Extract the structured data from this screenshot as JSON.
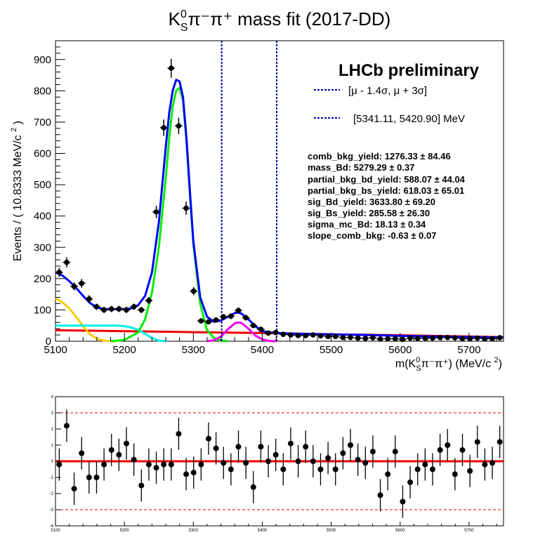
{
  "title": "K⁰Sπ⁻π⁺ mass fit (2017-DD)",
  "title_parts": {
    "k": "K",
    "sup": "0",
    "sub": "S",
    "rest": "π⁻π⁺ mass fit (2017-DD)"
  },
  "colors": {
    "data": "#000000",
    "total": "#0000ff",
    "sig_bd": "#00ee00",
    "sig_bs": "#ee00ee",
    "partial_bd": "#ffcc00",
    "partial_bs": "#00eeee",
    "comb": "#ee0000",
    "window": "#0000aa"
  },
  "chart_data": [
    {
      "type": "line",
      "panel": "fit",
      "title": "K⁰Sπ⁻π⁺ mass fit (2017-DD)",
      "xlabel": "m(K⁰Sπ⁻π⁺) (MeV/c²)",
      "ylabel": "Events / ( 10.8333 MeV/c 2 )",
      "xlabel_parts": {
        "pre": "m(K",
        "sup": "0",
        "sub": "S",
        "mid": "π⁻π⁺) (MeV/c ",
        "unit_sup": "2",
        "post": ")"
      },
      "ylabel_parts": {
        "main": "Events / ( 10.8333 MeV/c ",
        "sup": "2",
        "post": " )"
      },
      "xlim": [
        5100,
        5750
      ],
      "ylim": [
        0,
        960
      ],
      "xticks": [
        5100,
        5200,
        5300,
        5400,
        5500,
        5600,
        5700
      ],
      "yticks": [
        0,
        100,
        200,
        300,
        400,
        500,
        600,
        700,
        800,
        900
      ],
      "experiment_label": "LHCb preliminary",
      "window_legend": [
        {
          "label": "[μ - 1.4σ,   μ + 3σ]"
        },
        {
          "label": "[5341.11, 5420.90] MeV"
        }
      ],
      "window_lines_x": [
        5341.11,
        5420.9
      ],
      "params": [
        {
          "label": "comb_bkg_yield:  1276.33  ± 84.46"
        },
        {
          "label": "mass_Bd:  5279.29  ± 0.37"
        },
        {
          "label": "partial_bkg_bd_yield:  588.07  ± 44.04"
        },
        {
          "label": "partial_bkg_bs_yield:  618.03  ± 65.01"
        },
        {
          "label": "sig_Bd_yield:  3633.80  ± 69.20"
        },
        {
          "label": "sig_Bs_yield:  285.58  ± 26.30"
        },
        {
          "label": "sigma_mc_Bd:  18.13  ± 0.34"
        },
        {
          "label": "slope_comb_bkg:  -0.63  ± 0.07"
        }
      ],
      "data_points": {
        "x": [
          5105.42,
          5116.25,
          5127.08,
          5137.92,
          5148.75,
          5159.58,
          5170.42,
          5181.25,
          5192.08,
          5202.92,
          5213.75,
          5224.58,
          5235.42,
          5246.25,
          5257.08,
          5267.92,
          5278.75,
          5289.58,
          5300.42,
          5311.25,
          5322.08,
          5332.92,
          5343.75,
          5354.58,
          5365.42,
          5376.25,
          5387.08,
          5397.92,
          5408.75,
          5419.58,
          5430.42,
          5441.25,
          5452.08,
          5462.92,
          5473.75,
          5484.58,
          5495.42,
          5506.25,
          5517.08,
          5527.92,
          5538.75,
          5549.58,
          5560.42,
          5571.25,
          5582.08,
          5592.92,
          5603.75,
          5614.58,
          5625.42,
          5636.25,
          5647.08,
          5657.92,
          5668.75,
          5679.58,
          5690.42,
          5701.25,
          5712.08,
          5722.92,
          5733.75,
          5744.58
        ],
        "y": [
          220,
          252,
          175,
          185,
          135,
          110,
          100,
          103,
          103,
          100,
          110,
          100,
          130,
          413,
          682,
          872,
          688,
          425,
          160,
          65,
          62,
          68,
          78,
          80,
          98,
          75,
          50,
          38,
          26,
          28,
          22,
          20,
          18,
          18,
          20,
          17,
          15,
          15,
          12,
          12,
          10,
          9,
          11,
          7,
          8,
          8,
          6,
          10,
          9,
          10,
          10,
          12,
          12,
          11,
          8,
          8,
          10,
          8,
          8,
          11
        ],
        "yerr": [
          15,
          16,
          13,
          14,
          12,
          10,
          10,
          10,
          10,
          10,
          10,
          10,
          11,
          20,
          26,
          30,
          26,
          21,
          13,
          8,
          8,
          8,
          9,
          9,
          10,
          9,
          7,
          6,
          5,
          5,
          5,
          5,
          4,
          4,
          4,
          4,
          4,
          4,
          3,
          3,
          3,
          3,
          3,
          3,
          3,
          3,
          3,
          3,
          3,
          3,
          3,
          3,
          3,
          3,
          3,
          3,
          3,
          3,
          3,
          3
        ]
      },
      "series": [
        {
          "color_key": "total",
          "x": [
            5100,
            5110,
            5120,
            5130,
            5140,
            5150,
            5160,
            5170,
            5180,
            5190,
            5200,
            5210,
            5220,
            5230,
            5240,
            5250,
            5260,
            5265,
            5270,
            5275,
            5280,
            5285,
            5290,
            5295,
            5300,
            5310,
            5320,
            5330,
            5340,
            5350,
            5360,
            5365,
            5370,
            5380,
            5390,
            5400,
            5420,
            5450,
            5500,
            5550,
            5600,
            5650,
            5700,
            5750
          ],
          "y": [
            220,
            210,
            192,
            170,
            145,
            122,
            108,
            103,
            102,
            102,
            103,
            105,
            115,
            145,
            220,
            380,
            620,
            730,
            800,
            835,
            830,
            780,
            650,
            480,
            320,
            140,
            78,
            62,
            66,
            78,
            90,
            92,
            88,
            70,
            48,
            32,
            26,
            24,
            22,
            20,
            17,
            15,
            13,
            12
          ]
        },
        {
          "color_key": "sig_bd",
          "x": [
            5180,
            5200,
            5220,
            5230,
            5240,
            5250,
            5260,
            5265,
            5270,
            5275,
            5280,
            5285,
            5290,
            5295,
            5300,
            5310,
            5320,
            5330,
            5340,
            5350
          ],
          "y": [
            0,
            4,
            28,
            70,
            155,
            300,
            520,
            650,
            750,
            800,
            810,
            770,
            640,
            470,
            310,
            120,
            35,
            10,
            2,
            0
          ]
        },
        {
          "color_key": "sig_bs",
          "x": [
            5320,
            5330,
            5340,
            5350,
            5360,
            5365,
            5370,
            5380,
            5390,
            5400,
            5410,
            5420
          ],
          "y": [
            0,
            3,
            15,
            38,
            57,
            60,
            58,
            40,
            18,
            6,
            1,
            0
          ]
        },
        {
          "color_key": "partial_bd",
          "x": [
            5100,
            5110,
            5120,
            5130,
            5140,
            5150,
            5160,
            5170,
            5180,
            5190
          ],
          "y": [
            137,
            125,
            105,
            78,
            48,
            22,
            8,
            2,
            0,
            0
          ]
        },
        {
          "color_key": "partial_bs",
          "x": [
            5100,
            5150,
            5190,
            5200,
            5210,
            5220,
            5230,
            5240,
            5250,
            5260
          ],
          "y": [
            50,
            50,
            50,
            48,
            44,
            36,
            24,
            10,
            2,
            0
          ]
        },
        {
          "color_key": "comb",
          "x": [
            5100,
            5200,
            5300,
            5400,
            5500,
            5600,
            5700,
            5750
          ],
          "y": [
            35,
            32,
            29,
            26,
            22,
            19,
            15,
            13
          ]
        }
      ]
    },
    {
      "type": "scatter",
      "panel": "pull",
      "xlim": [
        5100,
        5750
      ],
      "ylim": [
        -4,
        4
      ],
      "xticks": [
        5100,
        5200,
        5300,
        5400,
        5500,
        5600,
        5700
      ],
      "yticks": [
        -4,
        -3,
        -2,
        -1,
        0,
        1,
        2,
        3,
        4
      ],
      "reference_lines": {
        "zero": 0,
        "upper": 3,
        "lower": -3
      },
      "x": [
        5105.42,
        5116.25,
        5127.08,
        5137.92,
        5148.75,
        5159.58,
        5170.42,
        5181.25,
        5192.08,
        5202.92,
        5213.75,
        5224.58,
        5235.42,
        5246.25,
        5257.08,
        5267.92,
        5278.75,
        5289.58,
        5300.42,
        5311.25,
        5322.08,
        5332.92,
        5343.75,
        5354.58,
        5365.42,
        5376.25,
        5387.08,
        5397.92,
        5408.75,
        5419.58,
        5430.42,
        5441.25,
        5452.08,
        5462.92,
        5473.75,
        5484.58,
        5495.42,
        5506.25,
        5517.08,
        5527.92,
        5538.75,
        5549.58,
        5560.42,
        5571.25,
        5582.08,
        5592.92,
        5603.75,
        5614.58,
        5625.42,
        5636.25,
        5647.08,
        5657.92,
        5668.75,
        5679.58,
        5690.42,
        5701.25,
        5712.08,
        5722.92,
        5733.75,
        5744.58
      ],
      "y": [
        -0.2,
        2.2,
        -1.7,
        0.5,
        -1.0,
        -1.0,
        -0.2,
        0.7,
        0.4,
        1.1,
        0.1,
        -1.5,
        -0.2,
        -0.4,
        -0.2,
        -0.2,
        1.7,
        -0.8,
        -0.7,
        -0.2,
        1.4,
        0.8,
        -0.1,
        -0.5,
        0.9,
        -0.1,
        -1.6,
        0.9,
        -0.0,
        0.4,
        -0.5,
        1.1,
        0.0,
        0.9,
        0.0,
        -0.5,
        0.2,
        -0.5,
        0.5,
        1.0,
        0.1,
        -0.1,
        0.6,
        -2.1,
        -0.8,
        0.6,
        -2.5,
        -1.3,
        -0.5,
        -0.2,
        -0.5,
        0.7,
        1.0,
        -0.8,
        0.7,
        -0.6,
        1.2,
        -0.2,
        -0.1,
        1.2
      ],
      "yerr": [
        1,
        1,
        1,
        1,
        1,
        1,
        1,
        1,
        1,
        1,
        1,
        1,
        1,
        1,
        1,
        1,
        1,
        1,
        1,
        1,
        1,
        1,
        1,
        1,
        1,
        1,
        1,
        1,
        1,
        1,
        1,
        1,
        1,
        1,
        1,
        1,
        1,
        1,
        1,
        1,
        1,
        1,
        1,
        1,
        1,
        1,
        1,
        1,
        1,
        1,
        1,
        1,
        1,
        1,
        1,
        1,
        1,
        1,
        1,
        1
      ]
    }
  ]
}
